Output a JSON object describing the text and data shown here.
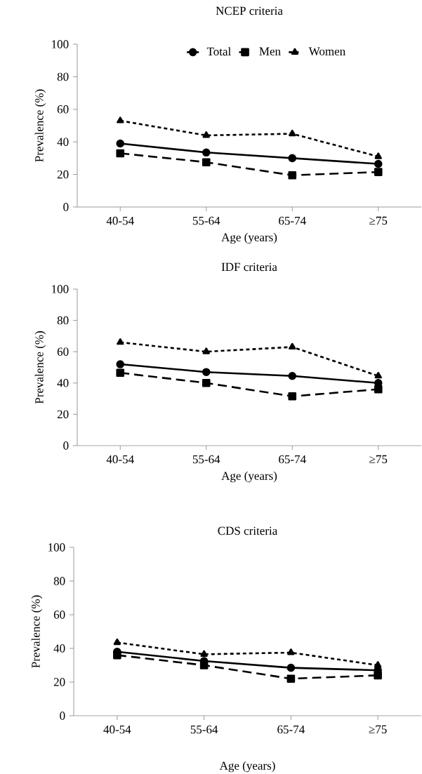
{
  "chart_data": [
    {
      "type": "line",
      "title": "NCEP criteria",
      "xlabel": "Age (years)",
      "ylabel": "Prevalence (%)",
      "categories": [
        "40-54",
        "55-64",
        "65-74",
        "≥75"
      ],
      "ylim": [
        0,
        100
      ],
      "yticks": [
        0,
        20,
        40,
        60,
        80,
        100
      ],
      "legend": "top",
      "series": [
        {
          "name": "Total",
          "color": "#000000",
          "marker": "circle",
          "line_style": "solid",
          "values": [
            39,
            33.5,
            30,
            26.5
          ]
        },
        {
          "name": "Men",
          "color": "#000000",
          "marker": "square",
          "line_style": "dashed",
          "values": [
            33,
            27.5,
            19.5,
            21.5
          ]
        },
        {
          "name": "Women",
          "color": "#000000",
          "marker": "triangle",
          "line_style": "dotted",
          "values": [
            53,
            44,
            45,
            31
          ]
        }
      ]
    },
    {
      "type": "line",
      "title": "IDF criteria",
      "xlabel": "Age (years)",
      "ylabel": "Prevalence (%)",
      "categories": [
        "40-54",
        "55-64",
        "65-74",
        "≥75"
      ],
      "ylim": [
        0,
        100
      ],
      "yticks": [
        0,
        20,
        40,
        60,
        80,
        100
      ],
      "series": [
        {
          "color": "#000000",
          "marker": "circle",
          "line_style": "solid",
          "values": [
            52,
            47,
            44.5,
            40
          ]
        },
        {
          "color": "#000000",
          "marker": "square",
          "line_style": "dashed",
          "values": [
            46.5,
            40,
            31.5,
            36
          ]
        },
        {
          "color": "#000000",
          "marker": "triangle",
          "line_style": "dotted",
          "values": [
            66,
            60,
            63,
            44.5
          ]
        }
      ]
    },
    {
      "type": "line",
      "title": "CDS criteria",
      "xlabel": "Age (years)",
      "ylabel": "Prevalence (%)",
      "categories": [
        "40-54",
        "55-64",
        "65-74",
        "≥75"
      ],
      "ylim": [
        0,
        100
      ],
      "yticks": [
        0,
        20,
        40,
        60,
        80,
        100
      ],
      "series": [
        {
          "color": "#000000",
          "marker": "circle",
          "line_style": "solid",
          "values": [
            38,
            32.5,
            28.5,
            27
          ]
        },
        {
          "color": "#000000",
          "marker": "square",
          "line_style": "dashed",
          "values": [
            36,
            30,
            22,
            24
          ]
        },
        {
          "color": "#000000",
          "marker": "triangle",
          "line_style": "dotted",
          "values": [
            43.5,
            36.5,
            37.5,
            30
          ]
        }
      ]
    }
  ]
}
